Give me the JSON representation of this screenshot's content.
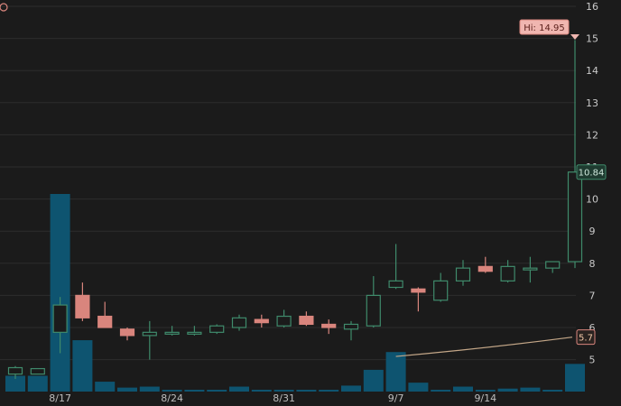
{
  "chart_data": {
    "type": "candlestick",
    "y_axis": {
      "min": 4,
      "max": 16,
      "ticks": [
        "16",
        "15",
        "14",
        "13",
        "12",
        "11",
        "10",
        "9",
        "8",
        "7",
        "6",
        "5"
      ]
    },
    "x_labels": [
      {
        "label": "8/17",
        "index": 2
      },
      {
        "label": "8/24",
        "index": 7
      },
      {
        "label": "8/31",
        "index": 12
      },
      {
        "label": "9/7",
        "index": 17
      },
      {
        "label": "9/14",
        "index": 21
      }
    ],
    "candles": [
      {
        "o": 4.55,
        "h": 4.8,
        "l": 4.4,
        "c": 4.75
      },
      {
        "o": 4.55,
        "h": 4.72,
        "l": 4.55,
        "c": 4.72
      },
      {
        "o": 5.85,
        "h": 6.95,
        "l": 5.2,
        "c": 6.7
      },
      {
        "o": 7.0,
        "h": 7.4,
        "l": 6.2,
        "c": 6.3
      },
      {
        "o": 6.35,
        "h": 6.8,
        "l": 6.0,
        "c": 6.0
      },
      {
        "o": 5.95,
        "h": 6.0,
        "l": 5.6,
        "c": 5.75
      },
      {
        "o": 5.75,
        "h": 6.2,
        "l": 5.0,
        "c": 5.85
      },
      {
        "o": 5.8,
        "h": 6.05,
        "l": 5.75,
        "c": 5.85
      },
      {
        "o": 5.8,
        "h": 6.05,
        "l": 5.75,
        "c": 5.85
      },
      {
        "o": 5.85,
        "h": 6.1,
        "l": 5.8,
        "c": 6.05
      },
      {
        "o": 6.0,
        "h": 6.4,
        "l": 5.9,
        "c": 6.3
      },
      {
        "o": 6.25,
        "h": 6.4,
        "l": 6.0,
        "c": 6.15
      },
      {
        "o": 6.05,
        "h": 6.55,
        "l": 6.0,
        "c": 6.35
      },
      {
        "o": 6.35,
        "h": 6.5,
        "l": 6.05,
        "c": 6.1
      },
      {
        "o": 6.1,
        "h": 6.25,
        "l": 5.8,
        "c": 6.0
      },
      {
        "o": 5.95,
        "h": 6.2,
        "l": 5.6,
        "c": 6.1
      },
      {
        "o": 6.05,
        "h": 7.6,
        "l": 6.0,
        "c": 7.0
      },
      {
        "o": 7.25,
        "h": 8.6,
        "l": 7.2,
        "c": 7.45
      },
      {
        "o": 7.2,
        "h": 7.25,
        "l": 6.5,
        "c": 7.1
      },
      {
        "o": 6.85,
        "h": 7.7,
        "l": 6.8,
        "c": 7.45
      },
      {
        "o": 7.45,
        "h": 8.1,
        "l": 7.3,
        "c": 7.85
      },
      {
        "o": 7.9,
        "h": 8.2,
        "l": 7.7,
        "c": 7.75
      },
      {
        "o": 7.45,
        "h": 8.1,
        "l": 7.4,
        "c": 7.9
      },
      {
        "o": 7.8,
        "h": 8.2,
        "l": 7.4,
        "c": 7.85
      },
      {
        "o": 7.85,
        "h": 8.05,
        "l": 7.7,
        "c": 8.05
      },
      {
        "o": 8.05,
        "h": 14.95,
        "l": 7.85,
        "c": 10.84
      }
    ],
    "volume": [
      0.08,
      0.08,
      1.0,
      0.26,
      0.05,
      0.02,
      0.025,
      0.008,
      0.008,
      0.008,
      0.025,
      0.008,
      0.008,
      0.008,
      0.008,
      0.03,
      0.11,
      0.2,
      0.045,
      0.008,
      0.025,
      0.008,
      0.015,
      0.02,
      0.008,
      0.14
    ],
    "moving_average": {
      "start_index": 17,
      "end_index": 25,
      "start_value": 5.1,
      "end_value": 5.7
    },
    "labels": {
      "high": "Hi: 14.95",
      "last": "10.84",
      "ma": "5.7"
    },
    "colors": {
      "background": "#1b1b1b",
      "grid": "#2d2d2d",
      "up": "#3f8a6b",
      "down": "#d9857d",
      "volume": "#0e5470",
      "ma_line": "#c4a788",
      "axis_text": "#c9c9c9"
    }
  }
}
